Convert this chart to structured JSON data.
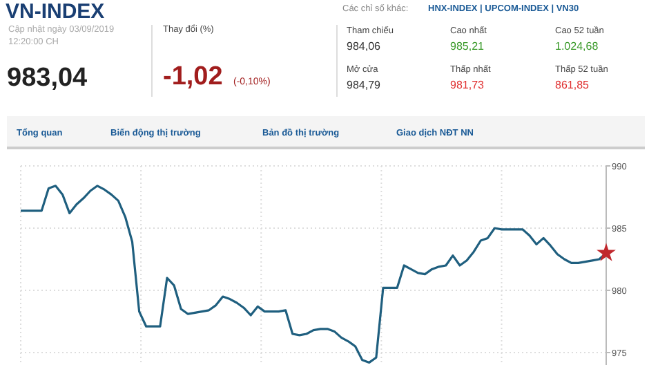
{
  "chart_data": {
    "type": "line",
    "title": "VN-INDEX",
    "annotations": [
      "Các chỉ số khác:",
      "HNX-INDEX | UPCOM-INDEX | VN30",
      "Cập nhật ngày 03/09/2019",
      "12:20:00 CH",
      "983,04",
      "Thay đổi (%)",
      "-1,02",
      "(-0,10%)",
      "Tham chiếu",
      "984,06",
      "Mở cửa",
      "984,79",
      "Cao nhất",
      "985,21",
      "Thấp nhất",
      "981,73",
      "Cao 52 tuần",
      "1.024,68",
      "Thấp 52 tuần",
      "861,85",
      "Tổng quan",
      "Biến động thị trường",
      "Bản đồ thị trường",
      "Giao dịch NĐT NN"
    ],
    "categories": [
      null,
      null,
      null,
      null,
      null,
      null,
      null,
      null,
      null,
      null,
      null,
      null,
      null,
      null,
      null,
      null,
      null,
      null,
      null,
      null,
      null,
      null,
      null,
      null,
      null,
      null,
      null,
      null,
      null,
      null,
      null,
      null,
      null,
      null,
      null,
      null,
      null,
      null,
      null,
      null,
      null,
      null,
      null,
      null,
      null,
      null,
      null,
      null,
      null,
      null,
      null,
      null,
      null,
      null,
      null,
      null,
      null,
      null,
      null,
      null,
      null,
      null,
      null,
      null,
      null,
      null,
      null,
      null,
      null,
      null,
      null,
      null,
      null,
      null,
      null,
      null,
      null,
      null,
      null,
      null,
      null,
      null,
      null,
      null,
      null
    ],
    "series": [
      {
        "type": "line",
        "color": "#1f5f7f",
        "marker": "none",
        "values": [
          986.4,
          986.4,
          986.4,
          986.4,
          988.2,
          988.4,
          987.7,
          986.2,
          986.9,
          987.4,
          988.0,
          988.4,
          988.1,
          987.7,
          987.2,
          985.9,
          983.9,
          978.3,
          977.1,
          977.1,
          977.1,
          981.0,
          980.4,
          978.5,
          978.1,
          978.2,
          978.3,
          978.4,
          978.8,
          979.5,
          979.3,
          979.0,
          978.6,
          978.0,
          978.7,
          978.3,
          978.3,
          978.3,
          978.4,
          976.5,
          976.4,
          976.5,
          976.8,
          976.9,
          976.9,
          976.7,
          976.2,
          975.9,
          975.5,
          974.4,
          974.2,
          974.6,
          980.2,
          980.2,
          980.2,
          982.0,
          981.7,
          981.4,
          981.3,
          981.7,
          981.9,
          982.0,
          982.8,
          982.0,
          982.4,
          983.1,
          984.0,
          984.2,
          985.0,
          984.9,
          984.9,
          984.9,
          984.9,
          984.4,
          983.7,
          984.2,
          983.6,
          982.9,
          982.5,
          982.2,
          982.2,
          982.3,
          982.4,
          982.5,
          983.0
        ]
      },
      {
        "type": "scatter",
        "color": "#c0282d",
        "marker": "star",
        "values": [
          null,
          null,
          null,
          null,
          null,
          null,
          null,
          null,
          null,
          null,
          null,
          null,
          null,
          null,
          null,
          null,
          null,
          null,
          null,
          null,
          null,
          null,
          null,
          null,
          null,
          null,
          null,
          null,
          null,
          null,
          null,
          null,
          null,
          null,
          null,
          null,
          null,
          null,
          null,
          null,
          null,
          null,
          null,
          null,
          null,
          null,
          null,
          null,
          null,
          null,
          null,
          null,
          null,
          null,
          null,
          null,
          null,
          null,
          null,
          null,
          null,
          null,
          null,
          null,
          null,
          null,
          null,
          null,
          null,
          null,
          null,
          null,
          null,
          null,
          null,
          null,
          null,
          null,
          null,
          null,
          null,
          null,
          null,
          null,
          983.0
        ]
      }
    ],
    "ylim": [
      974,
      990
    ],
    "yticks": [
      975,
      980,
      985,
      990
    ],
    "grid": true
  }
}
